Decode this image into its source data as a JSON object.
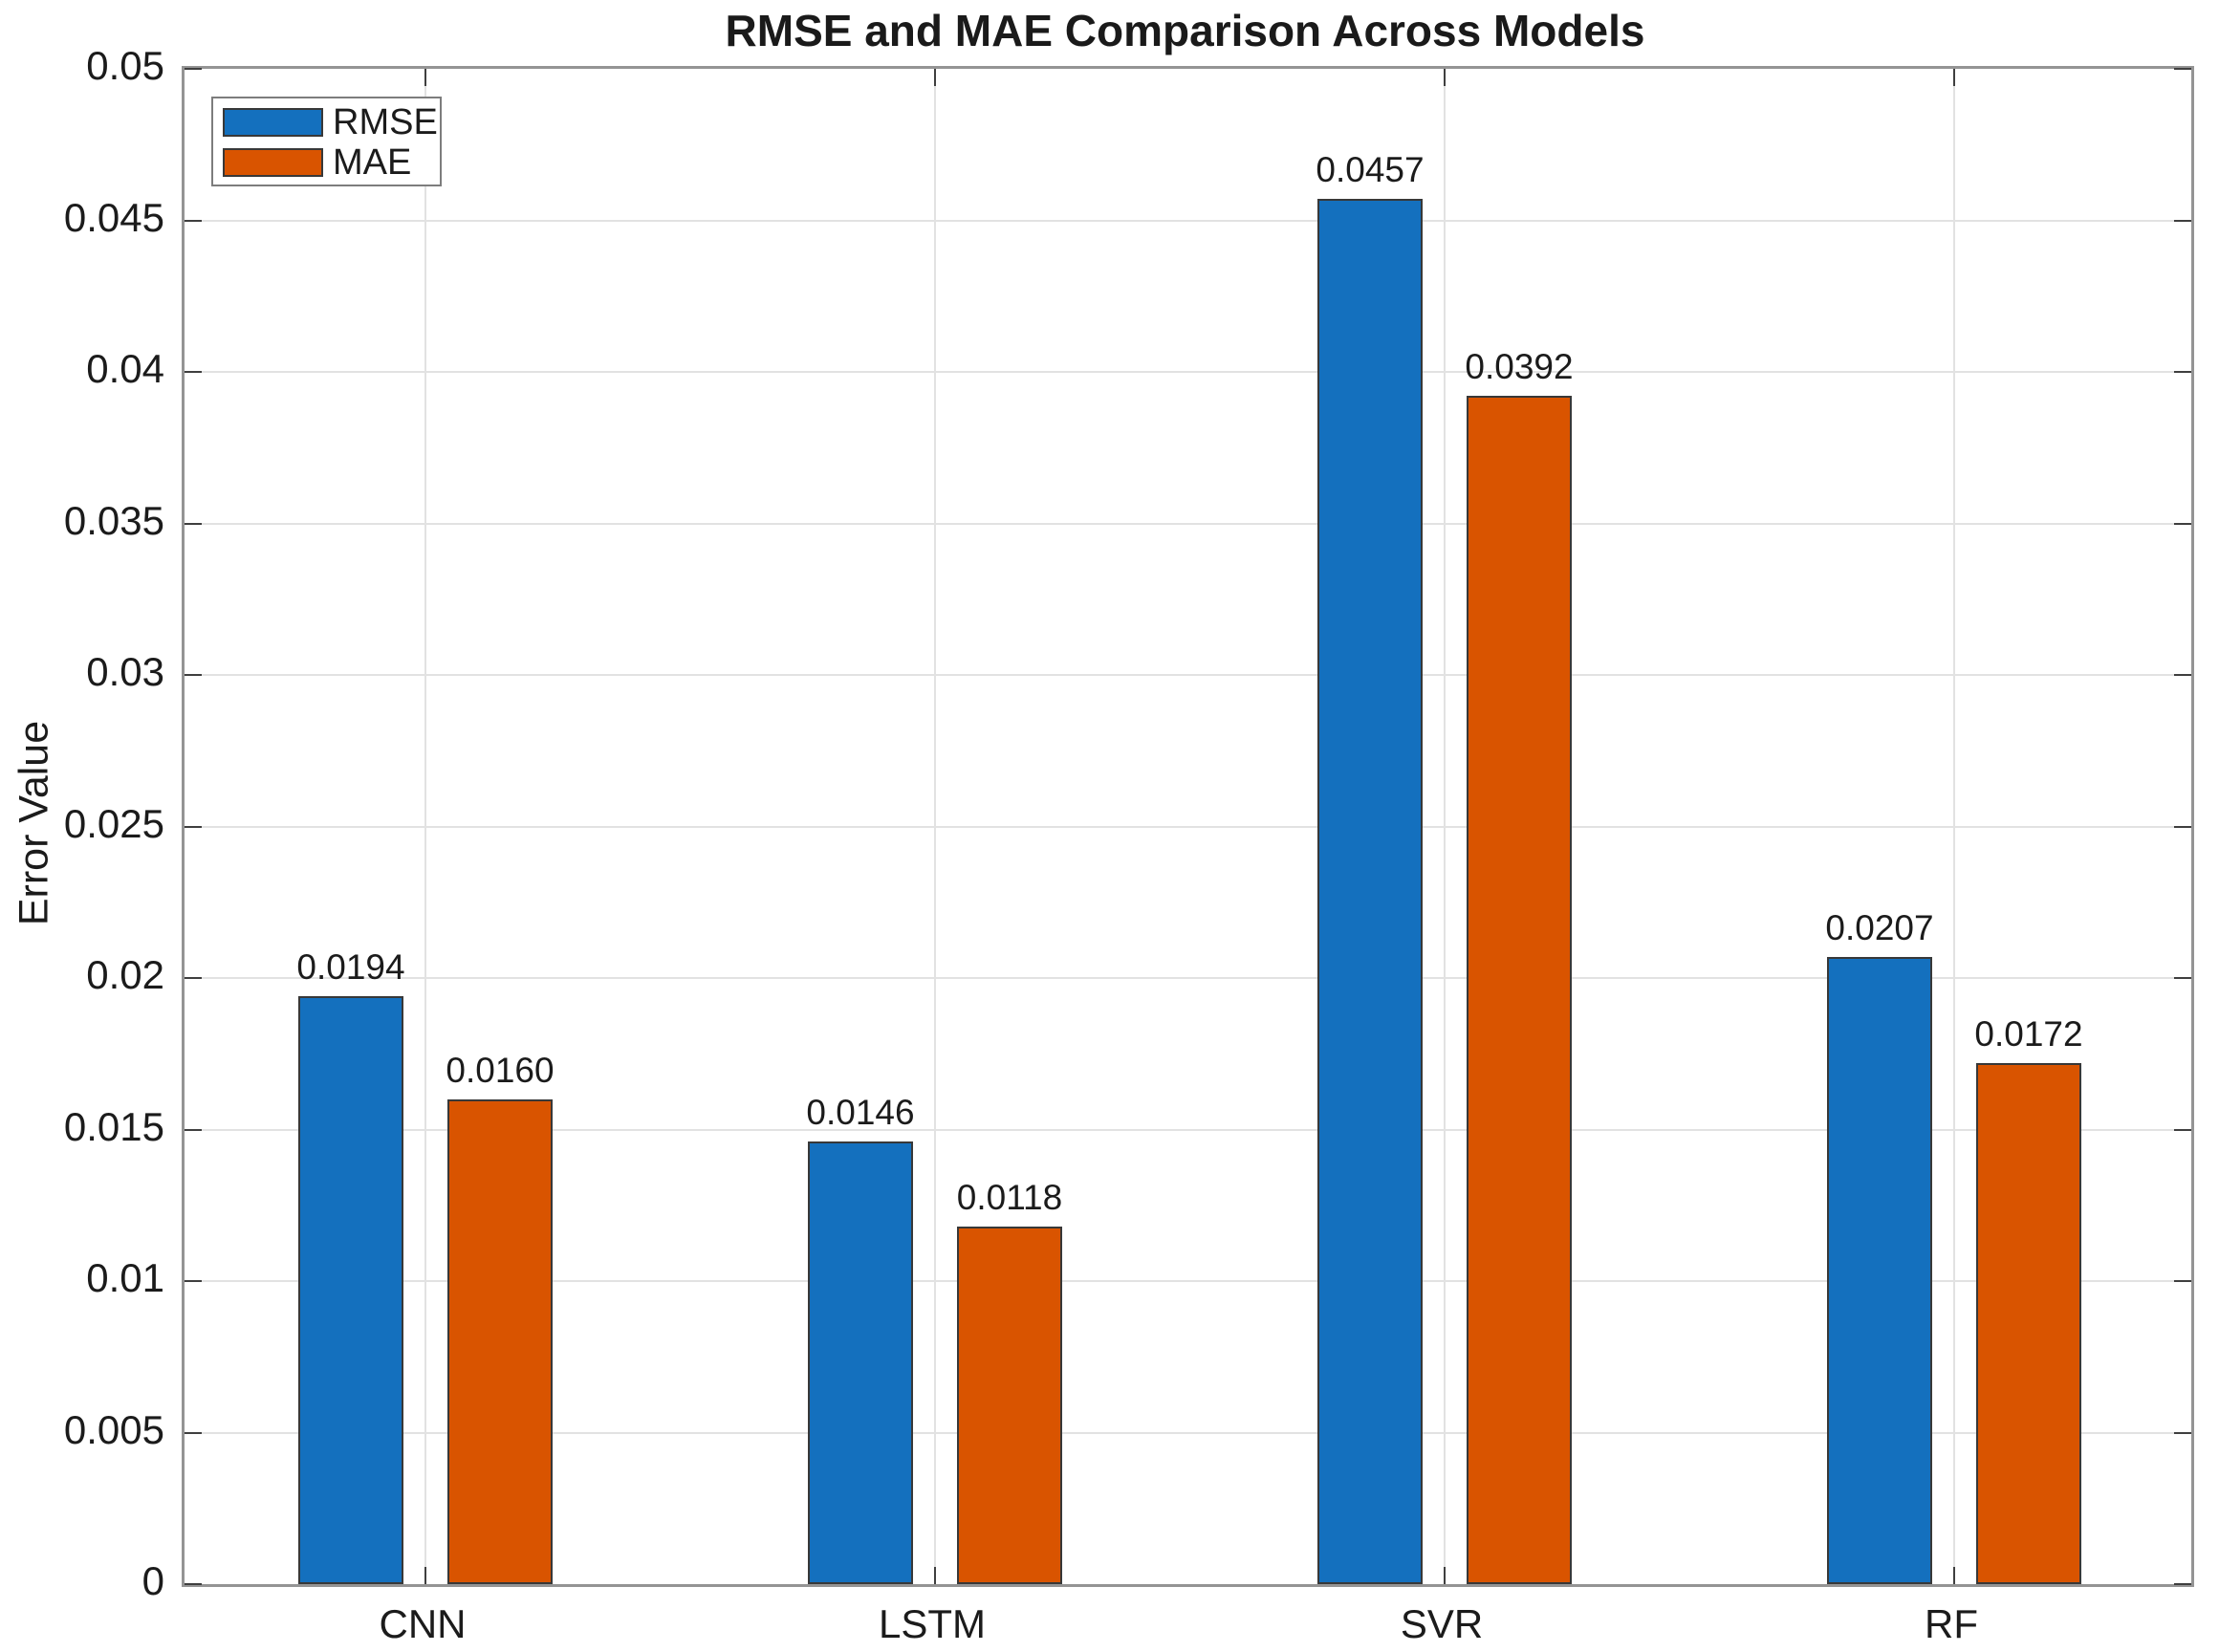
{
  "chart_data": {
    "type": "bar",
    "title": "RMSE and MAE Comparison Across Models",
    "xlabel": "",
    "ylabel": "Error Value",
    "categories": [
      "CNN",
      "LSTM",
      "SVR",
      "RF"
    ],
    "series": [
      {
        "name": "RMSE",
        "color": "#1470BE",
        "values": [
          0.0194,
          0.0146,
          0.0457,
          0.0207
        ],
        "value_labels": [
          "0.0194",
          "0.0146",
          "0.0457",
          "0.0207"
        ]
      },
      {
        "name": "MAE",
        "color": "#D95400",
        "values": [
          0.016,
          0.0118,
          0.0392,
          0.0172
        ],
        "value_labels": [
          "0.0160",
          "0.0118",
          "0.0392",
          "0.0172"
        ]
      }
    ],
    "ylim": [
      0,
      0.05
    ],
    "yticks": [
      0,
      0.005,
      0.01,
      0.015,
      0.02,
      0.025,
      0.03,
      0.035,
      0.04,
      0.045,
      0.05
    ],
    "ytick_labels": [
      "0",
      "0.005",
      "0.01",
      "0.015",
      "0.02",
      "0.025",
      "0.03",
      "0.035",
      "0.04",
      "0.045",
      "0.05"
    ],
    "grid": true,
    "legend": {
      "position": "top-left",
      "entries": [
        "RMSE",
        "MAE"
      ]
    }
  },
  "colors": {
    "rmse_bar": "#1470BE",
    "mae_bar": "#D95400",
    "bar_edge": "#383838",
    "grid_line": "#E2E2E2",
    "axis_box": "#949494",
    "tick_mark": "#3F3F3F",
    "text": "#1B1B1B"
  }
}
